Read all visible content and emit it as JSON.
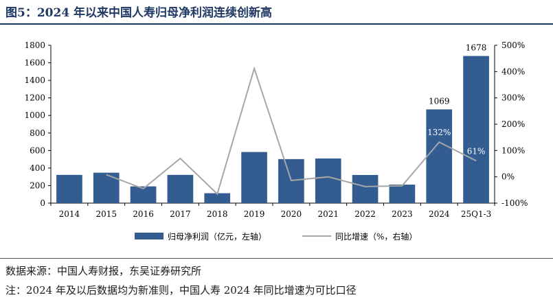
{
  "title": "图5：2024 年以来中国人寿归母净利润连续创新高",
  "source": "数据来源：中国人寿财报，东吴证券研究所",
  "note": "注：2024 年及以后数据均为新准则，中国人寿 2024 年同比增速为可比口径",
  "chart_data": {
    "type": "bar",
    "categories": [
      "2014",
      "2015",
      "2016",
      "2017",
      "2018",
      "2019",
      "2020",
      "2021",
      "2022",
      "2023",
      "2024",
      "25Q1-3"
    ],
    "series": [
      {
        "name": "归母净利润（亿元，左轴）",
        "type": "bar",
        "axis": "left",
        "color": "#335c91",
        "values": [
          322,
          347,
          191,
          322,
          113,
          583,
          502,
          509,
          321,
          211,
          1069,
          1678
        ]
      },
      {
        "name": "同比增速（%，右轴）",
        "type": "line",
        "axis": "right",
        "color": "#a6a6a6",
        "values": [
          null,
          8,
          -45,
          70,
          -65,
          412,
          -14,
          0,
          -37,
          -34,
          132,
          61
        ]
      }
    ],
    "bar_labels": [
      {
        "index": 10,
        "text": "1069"
      },
      {
        "index": 11,
        "text": "1678"
      }
    ],
    "line_labels": [
      {
        "index": 10,
        "text": "132%"
      },
      {
        "index": 11,
        "text": "61%"
      }
    ],
    "y_left": {
      "min": 0,
      "max": 1800,
      "ticks": [
        "0",
        "200",
        "400",
        "600",
        "800",
        "1000",
        "1200",
        "1400",
        "1600",
        "1800"
      ]
    },
    "y_right": {
      "min": -100,
      "max": 500,
      "ticks": [
        "-100%",
        "0%",
        "100%",
        "200%",
        "300%",
        "400%",
        "500%"
      ]
    },
    "legend_position": "bottom",
    "grid": false
  }
}
